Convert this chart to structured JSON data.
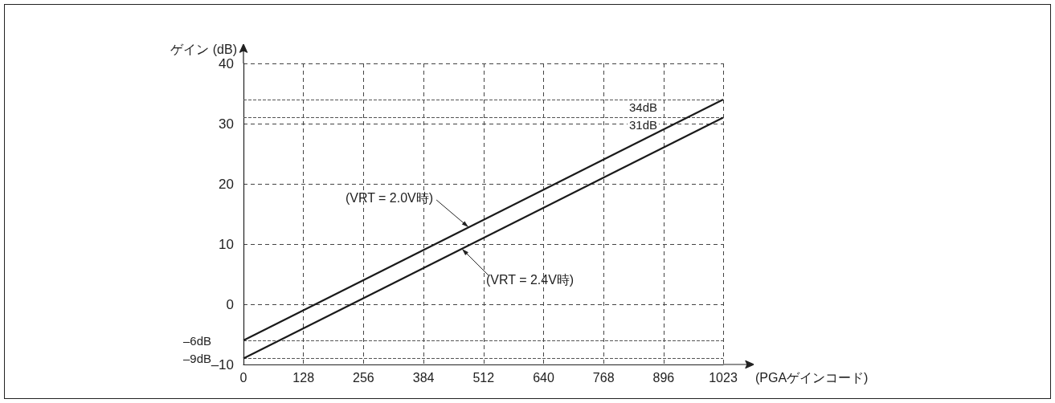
{
  "chart_data": {
    "type": "line",
    "xlabel": "(PGAゲインコード)",
    "ylabel": "ゲイン (dB)",
    "x": [
      0,
      1023
    ],
    "series": [
      {
        "color": "#1a1a1a",
        "values": [
          -6,
          34
        ]
      },
      {
        "color": "#1a1a1a",
        "values": [
          -9,
          31
        ]
      }
    ],
    "xlim": [
      0,
      1023
    ],
    "xticks": [
      0,
      128,
      256,
      384,
      512,
      640,
      768,
      896,
      1023
    ],
    "ylim": [
      -10,
      40
    ],
    "yticks": [
      {
        "value": -10,
        "label": "–10"
      },
      0,
      10,
      20,
      30,
      40
    ],
    "grid": true,
    "marker": "none",
    "line_style": "solid",
    "ref_lines": [
      {
        "axis": "y",
        "value": 34,
        "label": "34dB",
        "line_style": "dashed"
      },
      {
        "axis": "y",
        "value": 31,
        "label": "31dB",
        "line_style": "dashed"
      },
      {
        "axis": "y",
        "value": -6,
        "label": "–6dB",
        "line_style": "dashed"
      },
      {
        "axis": "y",
        "value": -9,
        "label": "–9dB",
        "line_style": "dashed"
      }
    ],
    "annotations": [
      {
        "text": "(VRT = 2.0V時)",
        "x": 480,
        "y": 12.8
      },
      {
        "text": "(VRT = 2.4V時)",
        "x": 466,
        "y": 9.2
      }
    ]
  }
}
